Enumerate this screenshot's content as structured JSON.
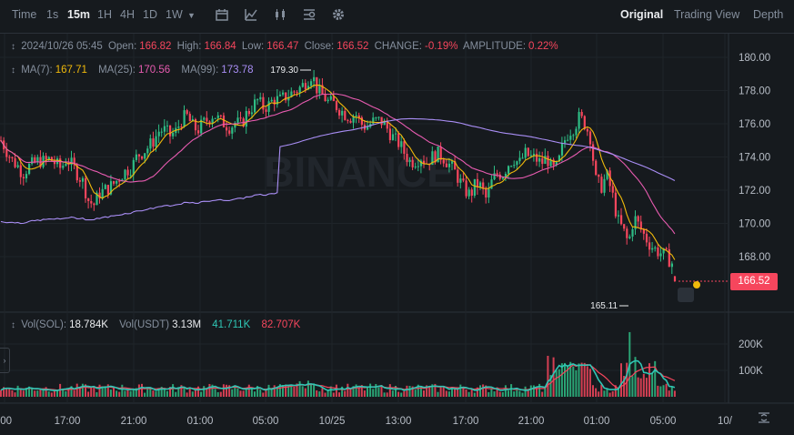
{
  "toolbar": {
    "time_label": "Time",
    "intervals": [
      "1s",
      "15m",
      "1H",
      "4H",
      "1D",
      "1W"
    ],
    "active_interval": "15m",
    "views": [
      "Original",
      "Trading View",
      "Depth"
    ],
    "active_view": "Original"
  },
  "info": {
    "date": "2024/10/26 05:45",
    "open_label": "Open:",
    "open": "166.82",
    "high_label": "High:",
    "high": "166.84",
    "low_label": "Low:",
    "low": "166.47",
    "close_label": "Close:",
    "close": "166.52",
    "change_label": "CHANGE:",
    "change": "-0.19%",
    "amplitude_label": "AMPLITUDE:",
    "amplitude": "0.22%"
  },
  "ma": {
    "ma7_label": "MA(7):",
    "ma7": "167.71",
    "ma25_label": "MA(25):",
    "ma25": "170.56",
    "ma99_label": "MA(99):",
    "ma99": "173.78"
  },
  "vol": {
    "sol_label": "Vol(SOL):",
    "sol": "18.784K",
    "usdt_label": "Vol(USDT)",
    "usdt": "3.13M",
    "v1": "41.711K",
    "v2": "82.707K"
  },
  "watermark": "BINANCE",
  "current_price": "166.52",
  "high_marker": "179.30",
  "low_marker": "165.11",
  "colors": {
    "up": "#2ebd85",
    "down": "#f6465d",
    "ma7": "#f0b90b",
    "ma25": "#e75bb0",
    "ma99": "#a98ef5",
    "vol_line": "#2fc7b6"
  },
  "chart_data": {
    "type": "candlestick",
    "price_axis": {
      "ticks": [
        "180.00",
        "178.00",
        "176.00",
        "174.00",
        "172.00",
        "170.00",
        "168.00"
      ],
      "ylim": [
        165,
        181
      ]
    },
    "volume_axis": {
      "ticks": [
        "200K",
        "100K"
      ]
    },
    "time_axis": {
      "ticks": [
        ":00",
        "17:00",
        "21:00",
        "01:00",
        "05:00",
        "10/25",
        "13:00",
        "17:00",
        "21:00",
        "01:00",
        "05:00",
        "10/"
      ]
    },
    "price_path": [
      [
        0,
        175.0
      ],
      [
        6,
        174.4
      ],
      [
        12,
        173.8
      ],
      [
        18,
        173.5
      ],
      [
        24,
        173.0
      ],
      [
        30,
        173.4
      ],
      [
        36,
        173.6
      ],
      [
        42,
        173.8
      ],
      [
        48,
        173.7
      ],
      [
        54,
        173.9
      ],
      [
        60,
        173.6
      ],
      [
        66,
        173.3
      ],
      [
        72,
        173.9
      ],
      [
        78,
        173.5
      ],
      [
        84,
        173.0
      ],
      [
        90,
        172.5
      ],
      [
        96,
        171.4
      ],
      [
        102,
        171.1
      ],
      [
        108,
        171.8
      ],
      [
        114,
        172.0
      ],
      [
        120,
        172.2
      ],
      [
        126,
        172.5
      ],
      [
        132,
        172.9
      ],
      [
        138,
        173.2
      ],
      [
        144,
        173.4
      ],
      [
        150,
        174.1
      ],
      [
        156,
        174.3
      ],
      [
        162,
        174.6
      ],
      [
        168,
        175.0
      ],
      [
        174,
        175.6
      ],
      [
        180,
        175.6
      ],
      [
        186,
        175.3
      ],
      [
        192,
        175.5
      ],
      [
        198,
        176.2
      ],
      [
        204,
        176.5
      ],
      [
        210,
        175.9
      ],
      [
        216,
        175.6
      ],
      [
        222,
        176.0
      ],
      [
        228,
        176.3
      ],
      [
        234,
        176.6
      ],
      [
        240,
        176.2
      ],
      [
        246,
        176.0
      ],
      [
        252,
        175.8
      ],
      [
        258,
        176.1
      ],
      [
        264,
        175.9
      ],
      [
        270,
        176.6
      ],
      [
        276,
        177.0
      ],
      [
        282,
        177.4
      ],
      [
        288,
        177.0
      ],
      [
        294,
        177.1
      ],
      [
        300,
        177.5
      ],
      [
        306,
        177.4
      ],
      [
        312,
        177.6
      ],
      [
        318,
        177.8
      ],
      [
        324,
        178.0
      ],
      [
        330,
        178.2
      ],
      [
        336,
        178.6
      ],
      [
        342,
        179.0
      ],
      [
        348,
        178.0
      ],
      [
        354,
        177.7
      ],
      [
        360,
        177.3
      ],
      [
        366,
        177.2
      ],
      [
        372,
        176.9
      ],
      [
        378,
        176.6
      ],
      [
        384,
        176.4
      ],
      [
        390,
        176.6
      ],
      [
        396,
        176.0
      ],
      [
        402,
        175.8
      ],
      [
        408,
        176.1
      ],
      [
        414,
        176.2
      ],
      [
        420,
        176.1
      ],
      [
        426,
        175.6
      ],
      [
        432,
        175.1
      ],
      [
        438,
        174.8
      ],
      [
        444,
        174.2
      ],
      [
        450,
        173.7
      ],
      [
        456,
        173.8
      ],
      [
        462,
        174.0
      ],
      [
        468,
        173.7
      ],
      [
        474,
        174.0
      ],
      [
        480,
        174.2
      ],
      [
        486,
        174.0
      ],
      [
        492,
        173.6
      ],
      [
        498,
        173.2
      ],
      [
        504,
        172.6
      ],
      [
        510,
        172.0
      ],
      [
        516,
        171.7
      ],
      [
        522,
        172.4
      ],
      [
        528,
        172.2
      ],
      [
        534,
        171.4
      ],
      [
        540,
        172.6
      ],
      [
        546,
        173.0
      ],
      [
        552,
        173.0
      ],
      [
        558,
        173.6
      ],
      [
        564,
        173.9
      ],
      [
        570,
        173.6
      ],
      [
        576,
        174.2
      ],
      [
        582,
        174.0
      ],
      [
        588,
        173.9
      ],
      [
        594,
        173.6
      ],
      [
        600,
        174.0
      ],
      [
        606,
        173.2
      ],
      [
        612,
        173.4
      ],
      [
        618,
        174.8
      ],
      [
        624,
        175.5
      ],
      [
        630,
        175.8
      ],
      [
        636,
        176.4
      ],
      [
        642,
        176.0
      ],
      [
        648,
        175.2
      ],
      [
        654,
        172.6
      ],
      [
        660,
        172.2
      ],
      [
        666,
        172.9
      ],
      [
        672,
        171.8
      ],
      [
        678,
        170.2
      ],
      [
        684,
        169.6
      ],
      [
        690,
        168.8
      ],
      [
        696,
        170.4
      ],
      [
        702,
        169.8
      ],
      [
        708,
        169.2
      ],
      [
        714,
        168.7
      ],
      [
        720,
        168.4
      ],
      [
        726,
        168.2
      ],
      [
        732,
        168.0
      ],
      [
        738,
        167.6
      ],
      [
        744,
        166.52
      ]
    ]
  }
}
